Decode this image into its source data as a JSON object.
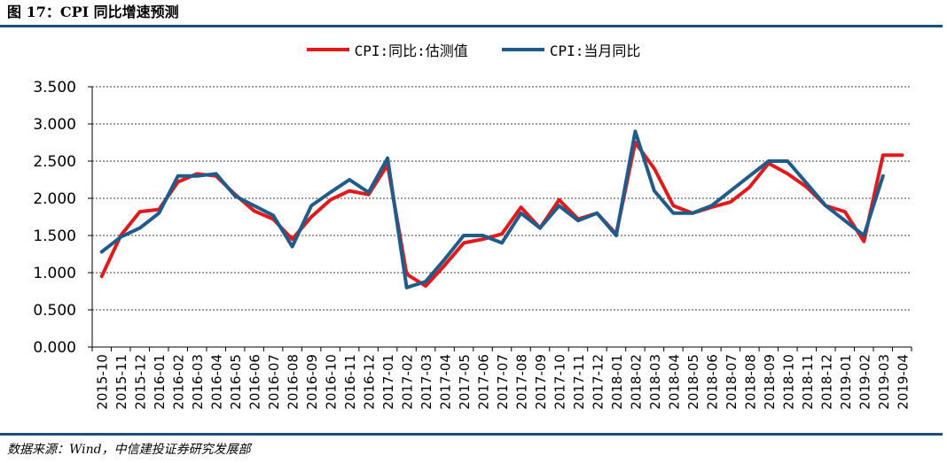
{
  "header": {
    "title": "图 17：CPI 同比增速预测"
  },
  "footer": {
    "source": "数据来源：Wind，中信建投证券研究发展部"
  },
  "legend": [
    {
      "name": "CPI:同比:估测值",
      "color": "#e31a1c"
    },
    {
      "name": "CPI:当月同比",
      "color": "#1f5c8b"
    }
  ],
  "chart_data": {
    "type": "line",
    "legend_position": "top",
    "grid": "horizontal-dashed",
    "ylim": [
      0,
      3.5
    ],
    "yticks": [
      "0.000",
      "0.500",
      "1.000",
      "1.500",
      "2.000",
      "2.500",
      "3.000",
      "3.500"
    ],
    "categories": [
      "2015-10",
      "2015-11",
      "2015-12",
      "2016-01",
      "2016-02",
      "2016-03",
      "2016-04",
      "2016-05",
      "2016-06",
      "2016-07",
      "2016-08",
      "2016-09",
      "2016-10",
      "2016-11",
      "2016-12",
      "2017-01",
      "2017-02",
      "2017-03",
      "2017-04",
      "2017-05",
      "2017-06",
      "2017-07",
      "2017-08",
      "2017-09",
      "2017-10",
      "2017-11",
      "2017-12",
      "2018-01",
      "2018-02",
      "2018-03",
      "2018-04",
      "2018-05",
      "2018-06",
      "2018-07",
      "2018-08",
      "2018-09",
      "2018-10",
      "2018-11",
      "2018-12",
      "2019-01",
      "2019-02",
      "2019-03",
      "2019-04"
    ],
    "series": [
      {
        "name": "CPI:同比:估测值",
        "color": "#e31a1c",
        "values": [
          0.95,
          1.5,
          1.82,
          1.85,
          2.22,
          2.33,
          2.3,
          2.05,
          1.83,
          1.72,
          1.45,
          1.75,
          1.98,
          2.1,
          2.05,
          2.45,
          0.98,
          0.82,
          1.1,
          1.4,
          1.45,
          1.52,
          1.88,
          1.6,
          1.98,
          1.72,
          1.8,
          1.52,
          2.75,
          2.4,
          1.9,
          1.8,
          1.88,
          1.95,
          2.15,
          2.47,
          2.33,
          2.15,
          1.9,
          1.82,
          1.42,
          2.58,
          2.58
        ]
      },
      {
        "name": "CPI:当月同比",
        "color": "#1f5c8b",
        "values": [
          1.28,
          1.48,
          1.6,
          1.8,
          2.3,
          2.3,
          2.33,
          2.03,
          1.9,
          1.77,
          1.35,
          1.9,
          2.08,
          2.25,
          2.08,
          2.54,
          0.8,
          0.88,
          1.18,
          1.5,
          1.5,
          1.4,
          1.8,
          1.6,
          1.9,
          1.7,
          1.8,
          1.5,
          2.9,
          2.1,
          1.8,
          1.8,
          1.9,
          2.1,
          2.3,
          2.5,
          2.5,
          2.2,
          1.9,
          1.7,
          1.5,
          2.3,
          null
        ]
      }
    ]
  }
}
